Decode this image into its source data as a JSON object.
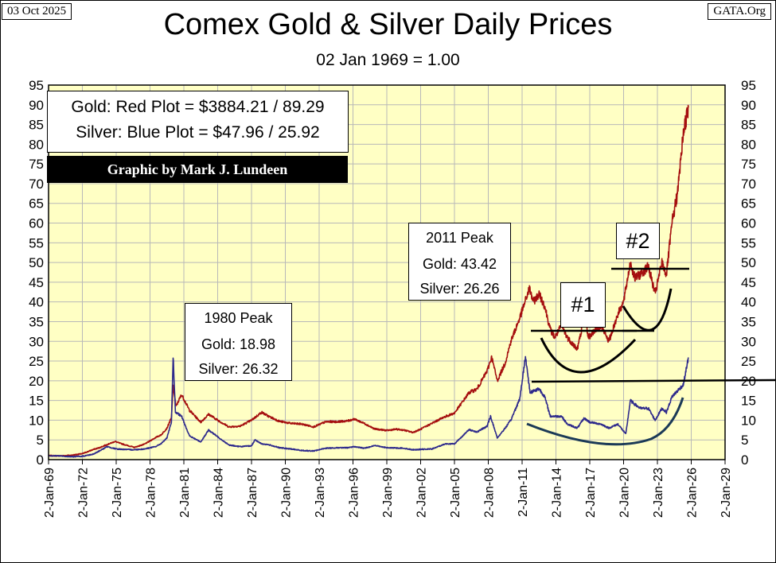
{
  "header": {
    "date": "03 Oct 2025",
    "source": "GATA.Org",
    "title": "Comex Gold & Silver Daily Prices",
    "subtitle": "02 Jan 1969 = 1.00"
  },
  "legend": {
    "gold_line": "Gold: Red Plot =  $3884.21 / 89.29",
    "silver_line": "Silver: Blue Plot = $47.96 / 25.92",
    "credit": "Graphic by Mark J. Lundeen"
  },
  "annotations": {
    "peak_1980": {
      "title": "1980 Peak",
      "gold": "Gold:  18.98",
      "silver": "Silver: 26.32"
    },
    "peak_2011": {
      "title": "2011 Peak",
      "gold": "Gold:  43.42",
      "silver": "Silver: 26.26"
    },
    "marker_1": "#1",
    "marker_2": "#2"
  },
  "colors": {
    "plot_background": "#FFFFC4",
    "gold": "#A50F0F",
    "silver": "#2E2A8C",
    "grid": "#B8B8B8"
  },
  "chart_data": {
    "type": "line",
    "title": "Comex Gold & Silver Daily Prices",
    "subtitle": "02 Jan 1969 = 1.00",
    "x_tick_labels": [
      "2-Jan-69",
      "2-Jan-72",
      "2-Jan-75",
      "2-Jan-78",
      "2-Jan-81",
      "2-Jan-84",
      "2-Jan-87",
      "2-Jan-90",
      "2-Jan-93",
      "2-Jan-96",
      "2-Jan-99",
      "2-Jan-02",
      "2-Jan-05",
      "2-Jan-08",
      "2-Jan-11",
      "2-Jan-14",
      "2-Jan-17",
      "2-Jan-20",
      "2-Jan-23",
      "2-Jan-26",
      "2-Jan-29"
    ],
    "xlim": [
      1969.0,
      2029.0
    ],
    "ylim": [
      0,
      95
    ],
    "y_ticks": [
      0,
      5,
      10,
      15,
      20,
      25,
      30,
      35,
      40,
      45,
      50,
      55,
      60,
      65,
      70,
      75,
      80,
      85,
      90,
      95
    ],
    "grid": true,
    "y_axis_both_sides": true,
    "series": [
      {
        "name": "Gold",
        "color": "#A50F0F",
        "points": [
          [
            1969.0,
            1.0
          ],
          [
            1970.0,
            0.95
          ],
          [
            1971.0,
            1.1
          ],
          [
            1972.0,
            1.5
          ],
          [
            1973.0,
            2.6
          ],
          [
            1973.5,
            3.0
          ],
          [
            1974.0,
            3.6
          ],
          [
            1974.9,
            4.6
          ],
          [
            1975.5,
            4.0
          ],
          [
            1976.6,
            3.1
          ],
          [
            1977.5,
            3.9
          ],
          [
            1978.5,
            5.6
          ],
          [
            1979.0,
            6.3
          ],
          [
            1979.5,
            8.0
          ],
          [
            1979.9,
            10.6
          ],
          [
            1980.05,
            18.98
          ],
          [
            1980.3,
            13.5
          ],
          [
            1980.8,
            16.5
          ],
          [
            1981.5,
            12.5
          ],
          [
            1982.5,
            9.5
          ],
          [
            1983.2,
            11.5
          ],
          [
            1984.0,
            10.0
          ],
          [
            1985.0,
            8.3
          ],
          [
            1986.0,
            8.5
          ],
          [
            1987.0,
            10.0
          ],
          [
            1987.9,
            12.0
          ],
          [
            1988.5,
            11.0
          ],
          [
            1989.5,
            9.7
          ],
          [
            1990.5,
            9.2
          ],
          [
            1991.5,
            9.0
          ],
          [
            1992.5,
            8.3
          ],
          [
            1993.6,
            9.6
          ],
          [
            1994.5,
            9.6
          ],
          [
            1995.5,
            9.8
          ],
          [
            1996.1,
            10.3
          ],
          [
            1997.0,
            9.2
          ],
          [
            1997.9,
            7.8
          ],
          [
            1999.0,
            7.4
          ],
          [
            1999.8,
            7.7
          ],
          [
            2000.5,
            7.5
          ],
          [
            2001.3,
            6.9
          ],
          [
            2002.0,
            7.7
          ],
          [
            2003.0,
            9.2
          ],
          [
            2004.0,
            10.7
          ],
          [
            2005.0,
            11.8
          ],
          [
            2006.3,
            17.0
          ],
          [
            2007.0,
            17.9
          ],
          [
            2007.9,
            22.5
          ],
          [
            2008.3,
            26.0
          ],
          [
            2008.8,
            20.0
          ],
          [
            2009.5,
            24.5
          ],
          [
            2010.0,
            30.0
          ],
          [
            2010.8,
            36.0
          ],
          [
            2011.65,
            43.42
          ],
          [
            2012.0,
            40.0
          ],
          [
            2012.5,
            42.0
          ],
          [
            2013.0,
            39.0
          ],
          [
            2013.5,
            33.0
          ],
          [
            2013.9,
            31.0
          ],
          [
            2014.5,
            34.0
          ],
          [
            2015.0,
            31.0
          ],
          [
            2015.9,
            28.0
          ],
          [
            2016.5,
            36.0
          ],
          [
            2016.9,
            31.0
          ],
          [
            2017.5,
            33.0
          ],
          [
            2018.0,
            34.0
          ],
          [
            2018.7,
            30.0
          ],
          [
            2019.5,
            37.0
          ],
          [
            2020.0,
            40.0
          ],
          [
            2020.6,
            50.0
          ],
          [
            2021.0,
            46.0
          ],
          [
            2021.5,
            47.0
          ],
          [
            2022.2,
            49.0
          ],
          [
            2022.8,
            42.0
          ],
          [
            2023.4,
            50.0
          ],
          [
            2023.8,
            47.0
          ],
          [
            2024.3,
            60.0
          ],
          [
            2024.8,
            68.0
          ],
          [
            2025.3,
            83.0
          ],
          [
            2025.75,
            89.29
          ]
        ]
      },
      {
        "name": "Silver",
        "color": "#2E2A8C",
        "points": [
          [
            1969.0,
            1.0
          ],
          [
            1970.0,
            0.93
          ],
          [
            1971.0,
            0.75
          ],
          [
            1972.0,
            0.85
          ],
          [
            1973.0,
            1.4
          ],
          [
            1974.2,
            3.3
          ],
          [
            1975.0,
            2.7
          ],
          [
            1976.5,
            2.5
          ],
          [
            1977.5,
            2.7
          ],
          [
            1978.5,
            3.3
          ],
          [
            1979.0,
            4.1
          ],
          [
            1979.5,
            5.5
          ],
          [
            1979.9,
            9.5
          ],
          [
            1980.05,
            26.32
          ],
          [
            1980.25,
            12.0
          ],
          [
            1980.8,
            11.0
          ],
          [
            1981.5,
            6.0
          ],
          [
            1982.5,
            4.5
          ],
          [
            1983.2,
            7.5
          ],
          [
            1984.0,
            5.8
          ],
          [
            1985.0,
            3.7
          ],
          [
            1986.0,
            3.3
          ],
          [
            1987.0,
            3.5
          ],
          [
            1987.3,
            5.0
          ],
          [
            1987.9,
            4.0
          ],
          [
            1988.5,
            3.8
          ],
          [
            1989.5,
            3.0
          ],
          [
            1990.5,
            2.7
          ],
          [
            1991.5,
            2.3
          ],
          [
            1992.5,
            2.2
          ],
          [
            1993.6,
            2.9
          ],
          [
            1994.5,
            3.0
          ],
          [
            1995.5,
            3.0
          ],
          [
            1996.1,
            3.3
          ],
          [
            1997.0,
            2.9
          ],
          [
            1998.0,
            3.6
          ],
          [
            1999.0,
            3.0
          ],
          [
            2000.5,
            2.9
          ],
          [
            2001.3,
            2.5
          ],
          [
            2002.0,
            2.6
          ],
          [
            2003.0,
            2.7
          ],
          [
            2004.2,
            4.0
          ],
          [
            2005.0,
            4.0
          ],
          [
            2006.3,
            7.6
          ],
          [
            2007.0,
            7.0
          ],
          [
            2007.9,
            8.5
          ],
          [
            2008.2,
            11.0
          ],
          [
            2008.8,
            5.5
          ],
          [
            2009.5,
            8.0
          ],
          [
            2010.0,
            10.0
          ],
          [
            2010.8,
            15.5
          ],
          [
            2011.3,
            26.26
          ],
          [
            2011.7,
            17.0
          ],
          [
            2012.5,
            18.0
          ],
          [
            2013.0,
            16.0
          ],
          [
            2013.5,
            11.0
          ],
          [
            2014.5,
            11.0
          ],
          [
            2015.0,
            9.0
          ],
          [
            2015.9,
            8.0
          ],
          [
            2016.5,
            10.5
          ],
          [
            2017.0,
            9.5
          ],
          [
            2018.0,
            9.0
          ],
          [
            2018.7,
            8.0
          ],
          [
            2019.5,
            9.0
          ],
          [
            2020.2,
            6.5
          ],
          [
            2020.6,
            15.0
          ],
          [
            2021.0,
            14.0
          ],
          [
            2021.5,
            13.0
          ],
          [
            2022.2,
            13.0
          ],
          [
            2022.8,
            10.0
          ],
          [
            2023.4,
            13.0
          ],
          [
            2023.8,
            12.0
          ],
          [
            2024.3,
            16.0
          ],
          [
            2024.8,
            17.5
          ],
          [
            2025.3,
            19.0
          ],
          [
            2025.75,
            25.92
          ]
        ]
      }
    ]
  }
}
